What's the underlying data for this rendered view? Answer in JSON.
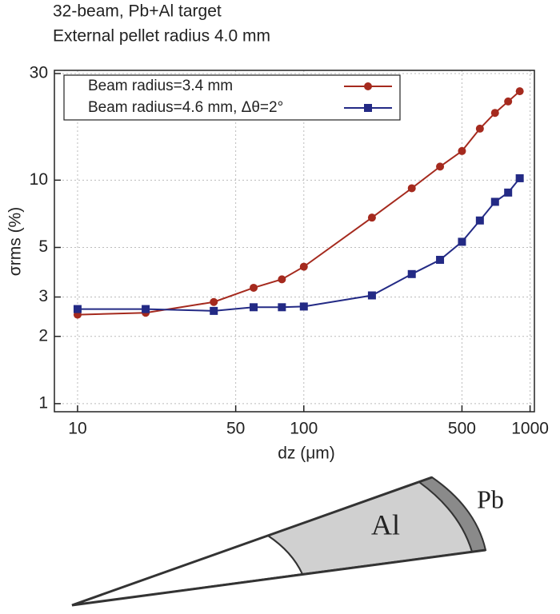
{
  "chart_data": {
    "type": "line",
    "title": "32-beam, Pb+Al target",
    "subtitle": "External pellet radius 4.0 mm",
    "x_label": "dz (μm)",
    "y_label": "σrms (%)",
    "x": [
      10,
      20,
      40,
      60,
      80,
      100,
      200,
      300,
      400,
      500,
      600,
      700,
      800,
      900
    ],
    "series": [
      {
        "name": "Beam radius=3.4 mm",
        "color": "#a52a1e",
        "marker": "circle",
        "values": [
          2.5,
          2.55,
          2.85,
          3.3,
          3.6,
          4.1,
          6.8,
          9.2,
          11.5,
          13.5,
          17,
          20,
          22.5,
          25
        ]
      },
      {
        "name": "Beam radius=4.6 mm, Δθ=2°",
        "color": "#232a85",
        "marker": "square",
        "values": [
          2.65,
          2.65,
          2.6,
          2.7,
          2.7,
          2.72,
          3.05,
          3.8,
          4.4,
          5.3,
          6.6,
          8,
          8.8,
          10.2
        ]
      }
    ],
    "xlim": [
      7.9,
      1045
    ],
    "ylim": [
      0.92,
      31
    ],
    "xticks": [
      10,
      50,
      100,
      500,
      1000
    ],
    "yticks": [
      1,
      2,
      3,
      5,
      10,
      30
    ],
    "xscale": "log",
    "yscale": "log",
    "grid": true,
    "legend": "top"
  },
  "diagram": {
    "labels": [
      "Al",
      "Pb"
    ]
  }
}
